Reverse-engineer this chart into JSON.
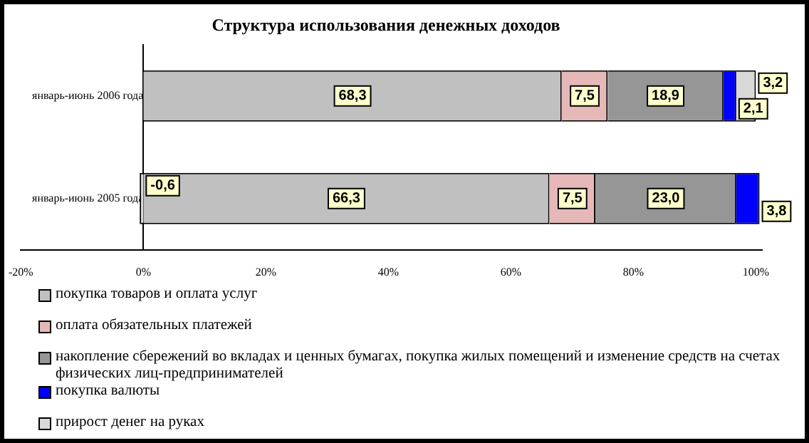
{
  "chart_data": {
    "type": "bar",
    "orientation": "horizontal",
    "stacked": true,
    "title": "Структура использования денежных доходов",
    "categories": [
      "январь-июнь 2006 года",
      "январь-июнь 2005 года"
    ],
    "series": [
      {
        "name": "покупка товаров и оплата услуг",
        "color": "#c0c0c0",
        "values": [
          68.3,
          66.3
        ],
        "value_labels": [
          "68,3",
          "66,3"
        ]
      },
      {
        "name": "оплата обязательных платежей",
        "color": "#e6b9b8",
        "values": [
          7.5,
          7.5
        ],
        "value_labels": [
          "7,5",
          "7,5"
        ]
      },
      {
        "name": "накопление сбережений во вкладах и ценных бумагах, покупка жилых помещений и изменение средств на счетах физических лиц-предпринимателей",
        "color": "#969696",
        "values": [
          18.9,
          23.0
        ],
        "value_labels": [
          "18,9",
          "23,0"
        ]
      },
      {
        "name": "покупка валюты",
        "color": "#0000ff",
        "values": [
          2.1,
          3.8
        ],
        "value_labels": [
          "2,1",
          "3,8"
        ]
      },
      {
        "name": "прирост денег на руках",
        "color": "#d9d9d9",
        "values": [
          3.2,
          -0.6
        ],
        "value_labels": [
          "3,2",
          "-0,6"
        ]
      }
    ],
    "xlim": [
      -20,
      101
    ],
    "xticks": [
      {
        "value": -20,
        "label": "-20%"
      },
      {
        "value": 0,
        "label": "0%"
      },
      {
        "value": 20,
        "label": "20%"
      },
      {
        "value": 40,
        "label": "40%"
      },
      {
        "value": 60,
        "label": "60%"
      },
      {
        "value": 80,
        "label": "80%"
      },
      {
        "value": 100,
        "label": "100%"
      }
    ],
    "grid": false,
    "legend": "bottom"
  }
}
